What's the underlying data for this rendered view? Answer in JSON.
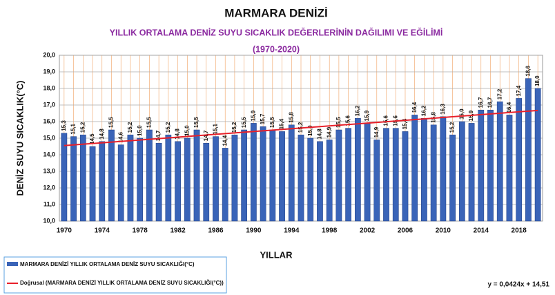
{
  "chart_data": {
    "type": "bar",
    "title": "MARMARA DENİZİ",
    "subtitle": "YILLIK ORTALAMA DENİZ SUYU SICAKLIK DEĞERLERİNİN  DAĞILIMI VE EĞİLİMİ",
    "subtitle2": "(1970-2020)",
    "ylabel": "DENİZ SUYU  SICAKLIK(°C)",
    "xlabel": "YILLAR",
    "categories": [
      "1970",
      null,
      null,
      null,
      "1974",
      null,
      null,
      null,
      "1978",
      null,
      null,
      null,
      "1982",
      null,
      null,
      null,
      "1986",
      null,
      null,
      null,
      "1990",
      null,
      null,
      null,
      "1994",
      null,
      null,
      null,
      "1998",
      null,
      null,
      null,
      "2002",
      null,
      null,
      null,
      "2006",
      null,
      null,
      null,
      "2010",
      null,
      null,
      null,
      "2014",
      null,
      null,
      null,
      "2018",
      null,
      null
    ],
    "series": [
      {
        "name": "MARMARA DENİZİ YILLIK ORTALAMA DENİZ SUYU SICAKLIĞI(°C)",
        "color": "#3a64b8",
        "values": [
          15.3,
          15.1,
          15.2,
          14.5,
          14.8,
          15.5,
          14.6,
          15.2,
          15.0,
          15.5,
          14.7,
          15.2,
          14.8,
          15.0,
          15.5,
          14.7,
          15.1,
          14.4,
          15.2,
          15.5,
          15.9,
          15.7,
          15.5,
          15.4,
          15.8,
          15.2,
          15.0,
          14.8,
          14.9,
          15.5,
          15.6,
          16.2,
          15.9,
          14.9,
          15.6,
          15.6,
          15.4,
          16.4,
          16.2,
          15.8,
          16.3,
          15.2,
          16.0,
          15.9,
          16.7,
          16.7,
          17.2,
          16.4,
          17.4,
          18.6,
          18.0
        ],
        "value_labels": [
          "15,3",
          "15,1",
          "15,2",
          "14,5",
          "14,8",
          "15,5",
          "14,6",
          "15,2",
          "15,0",
          "15,5",
          "14,7",
          "15,2",
          "14,8",
          "15,0",
          "15,5",
          "14,7",
          "15,1",
          "14,4",
          "15,2",
          "15,5",
          "15,9",
          "15,7",
          "15,5",
          "15,4",
          "15,8",
          "15,2",
          "15,0",
          "14,8",
          "14,9",
          "15,5",
          "15,6",
          "16,2",
          "15,9",
          "14,9",
          "15,6",
          "15,6",
          "15,4",
          "16,4",
          "16,2",
          "15,8",
          "16,3",
          "15,2",
          "16,0",
          "15,9",
          "16,7",
          "16,7",
          "17,2",
          "16,4",
          "17,4",
          "18,6",
          "18,0"
        ]
      }
    ],
    "trend": {
      "name": "Doğrusal (MARMARA DENİZİ YILLIK ORTALAMA DENİZ SUYU SICAKLIĞI(°C))",
      "color": "#e8202a",
      "slope": 0.0424,
      "intercept": 14.51,
      "equation": "y = 0,0424x + 14,51"
    },
    "ylim": [
      10,
      20
    ],
    "yticks": [
      {
        "value": 10,
        "label": "10,0"
      },
      {
        "value": 11,
        "label": "11,0"
      },
      {
        "value": 12,
        "label": "12,0"
      },
      {
        "value": 13,
        "label": "13,0"
      },
      {
        "value": 14,
        "label": "14,0"
      },
      {
        "value": 15,
        "label": "15,0"
      },
      {
        "value": 16,
        "label": "16,0"
      },
      {
        "value": 17,
        "label": "17,0"
      },
      {
        "value": 18,
        "label": "18,0"
      },
      {
        "value": 19,
        "label": "19,0"
      },
      {
        "value": 20,
        "label": "20,0"
      }
    ],
    "grid": true
  }
}
